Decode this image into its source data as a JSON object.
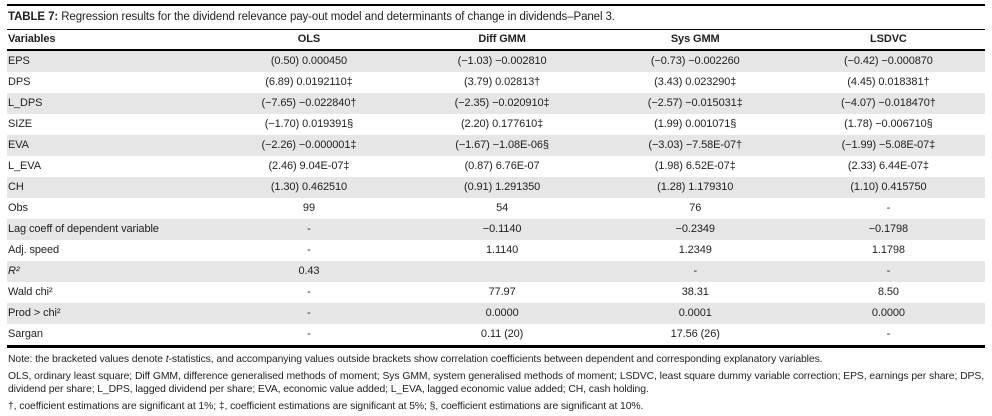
{
  "title": {
    "label": "TABLE 7:",
    "text": "Regression results for the dividend relevance pay-out model and determinants of change in dividends–Panel 3."
  },
  "table": {
    "columns": [
      "Variables",
      "OLS",
      "Diff GMM",
      "Sys GMM",
      "LSDVC"
    ],
    "rows": [
      {
        "label": "EPS",
        "cells": [
          "(0.50) 0.000450",
          "(−1.03) −0.002810",
          "(−0.73) −0.002260",
          "(−0.42) −0.000870"
        ]
      },
      {
        "label": "DPS",
        "cells": [
          "(6.89) 0.0192110‡",
          "(3.79) 0.02813†",
          "(3.43) 0.023290‡",
          "(4.45) 0.018381†"
        ]
      },
      {
        "label": "L_DPS",
        "cells": [
          "(−7.65) −0.022840†",
          "(−2.35) −0.020910‡",
          "(−2.57) −0.015031‡",
          "(−4.07) −0.018470†"
        ]
      },
      {
        "label": "SIZE",
        "cells": [
          "(−1.70) 0.019391§",
          "(2.20) 0.177610‡",
          "(1.99) 0.001071§",
          "(1.78) −0.006710§"
        ]
      },
      {
        "label": "EVA",
        "cells": [
          "(−2.26) −0.000001‡",
          "(−1.67) −1.08E-06§",
          "(−3.03) −7.58E-07†",
          "(−1.99) −5.08E-07‡"
        ]
      },
      {
        "label": "L_EVA",
        "cells": [
          "(2.46) 9.04E-07‡",
          "(0.87) 6.76E-07",
          "(1.98) 6.52E-07‡",
          "(2.33) 6.44E-07‡"
        ]
      },
      {
        "label": "CH",
        "cells": [
          "(1.30) 0.462510",
          "(0.91) 1.291350",
          "(1.28) 1.179310",
          "(1.10) 0.415750"
        ]
      },
      {
        "label": "Obs",
        "cells": [
          "99",
          "54",
          "76",
          "-"
        ]
      },
      {
        "label": "Lag coeff of dependent variable",
        "cells": [
          "-",
          "−0.1140",
          "−0.2349",
          "−0.1798"
        ]
      },
      {
        "label": "Adj. speed",
        "cells": [
          "-",
          "1.1140",
          "1.2349",
          "1.1798"
        ]
      },
      {
        "label": "R²",
        "italic": true,
        "cells": [
          "0.43",
          "",
          "-",
          "-"
        ]
      },
      {
        "label": "Wald chi²",
        "cells": [
          "-",
          "77.97",
          "38.31",
          "8.50"
        ]
      },
      {
        "label": "Prod > chi²",
        "cells": [
          "-",
          "0.0000",
          "0.0001",
          "0.0000"
        ]
      },
      {
        "label": "Sargan",
        "cells": [
          "-",
          "0.11 (20)",
          "17.56 (26)",
          "-"
        ]
      }
    ]
  },
  "notes": {
    "note1_pre": "Note: the bracketed values denote ",
    "note1_italic": "t",
    "note1_post": "-statistics, and accompanying values outside brackets show correlation coefficients between dependent and corresponding explanatory variables.",
    "abbreviations": "OLS, ordinary least square; Diff GMM, difference generalised methods of moment; Sys GMM, system generalised methods of moment; LSDVC, least square dummy variable correction; EPS, earnings per share; DPS, dividend per share; L_DPS, lagged dividend per share; EVA, economic value added; L_EVA, lagged economic value added; CH, cash holding.",
    "significance": "†, coefficient estimations are significant at 1%; ‡, coefficient estimations are significant at 5%; §, coefficient estimations are significant at 10%."
  },
  "colors": {
    "row_band": "#e6e6e6",
    "rule": "#000000",
    "text": "#1f1f1d"
  }
}
